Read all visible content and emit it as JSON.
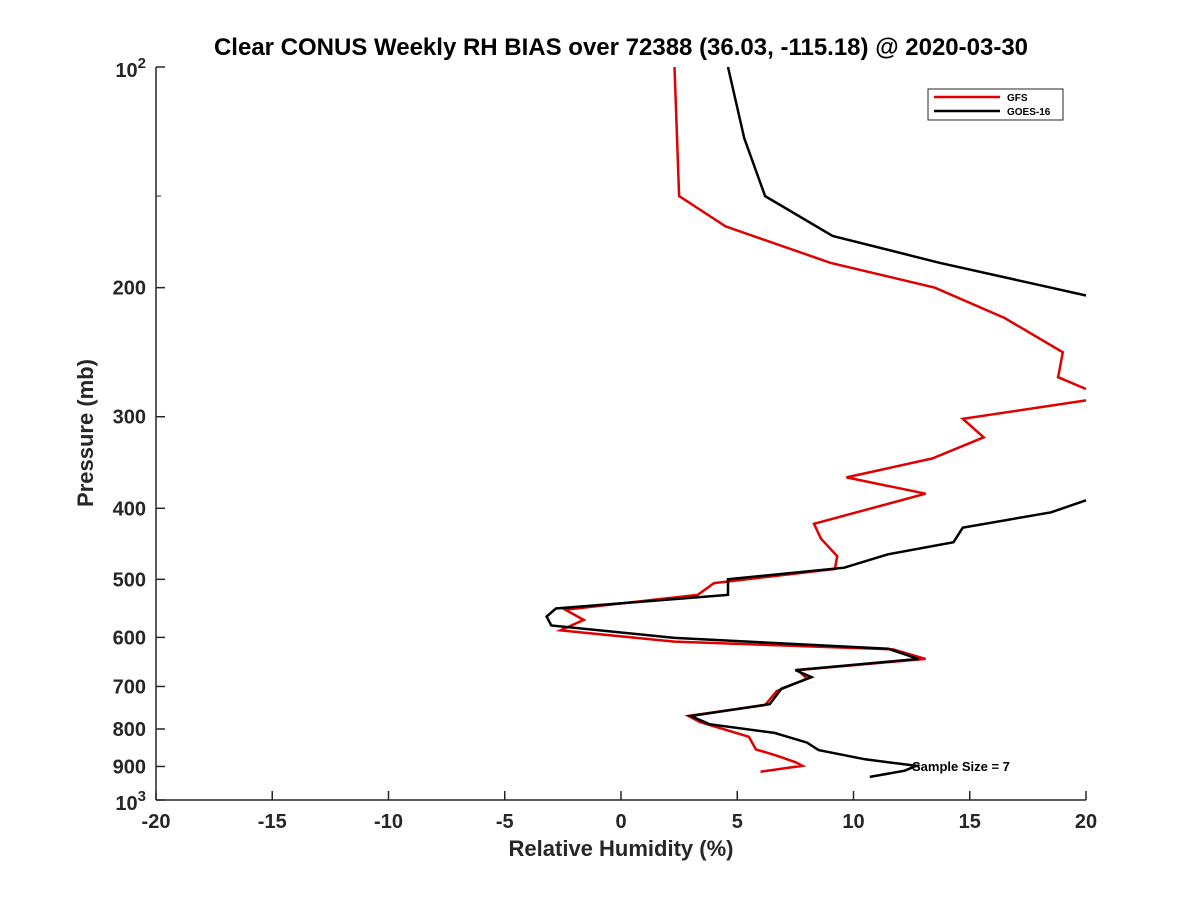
{
  "chart_data": {
    "type": "line",
    "title": "Clear CONUS Weekly RH BIAS over 72388 (36.03, -115.18) @ 2020-03-30",
    "xlabel": "Relative Humidity (%)",
    "ylabel": "Pressure (mb)",
    "xlim": [
      -20,
      20
    ],
    "ylim": [
      100,
      1000
    ],
    "y_scale": "log",
    "y_reversed": true,
    "xticks": [
      -20,
      -15,
      -10,
      -5,
      0,
      5,
      10,
      15,
      20
    ],
    "xtick_labels": [
      "-20",
      "-15",
      "-10",
      "-5",
      "0",
      "5",
      "10",
      "15",
      "20"
    ],
    "yticks": [
      200,
      300,
      400,
      500,
      600,
      700,
      800,
      900
    ],
    "ytick_labels": [
      "200",
      "300",
      "400",
      "500",
      "600",
      "700",
      "800",
      "900"
    ],
    "yticks_exp": [
      {
        "value": 100,
        "base": "10",
        "exp": "2"
      },
      {
        "value": 1000,
        "base": "10",
        "exp": "3"
      }
    ],
    "legend_position": "top-right",
    "grid": false,
    "series": [
      {
        "name": "GFS",
        "color": "#e00000",
        "points": [
          {
            "x": 2.3,
            "p": 100
          },
          {
            "x": 2.5,
            "p": 150
          },
          {
            "x": 4.5,
            "p": 165
          },
          {
            "x": 9.0,
            "p": 185
          },
          {
            "x": 13.5,
            "p": 200
          },
          {
            "x": 16.5,
            "p": 220
          },
          {
            "x": 19.0,
            "p": 245
          },
          {
            "x": 18.8,
            "p": 265
          },
          {
            "x": 20.0,
            "p": 275
          }
        ]
      },
      {
        "name": "GFS",
        "color": "#e00000",
        "points": [
          {
            "x": 20.0,
            "p": 285
          },
          {
            "x": 14.7,
            "p": 302
          },
          {
            "x": 15.6,
            "p": 320
          },
          {
            "x": 13.4,
            "p": 342
          },
          {
            "x": 9.7,
            "p": 363
          },
          {
            "x": 13.1,
            "p": 382
          },
          {
            "x": 8.3,
            "p": 420
          },
          {
            "x": 8.6,
            "p": 440
          },
          {
            "x": 9.3,
            "p": 465
          },
          {
            "x": 9.2,
            "p": 484
          },
          {
            "x": 4.0,
            "p": 506
          },
          {
            "x": 3.3,
            "p": 525
          },
          {
            "x": -2.4,
            "p": 550
          },
          {
            "x": -1.6,
            "p": 568
          },
          {
            "x": -2.6,
            "p": 587
          },
          {
            "x": 2.3,
            "p": 608
          },
          {
            "x": 11.7,
            "p": 623
          },
          {
            "x": 13.1,
            "p": 642
          },
          {
            "x": 7.6,
            "p": 665
          },
          {
            "x": 8.0,
            "p": 683
          },
          {
            "x": 6.7,
            "p": 710
          },
          {
            "x": 6.2,
            "p": 742
          },
          {
            "x": 2.9,
            "p": 768
          },
          {
            "x": 3.4,
            "p": 783
          },
          {
            "x": 5.5,
            "p": 820
          },
          {
            "x": 5.8,
            "p": 853
          },
          {
            "x": 6.7,
            "p": 870
          },
          {
            "x": 7.5,
            "p": 888
          },
          {
            "x": 7.8,
            "p": 898
          },
          {
            "x": 6.0,
            "p": 915
          }
        ]
      },
      {
        "name": "GOES-16",
        "color": "#000000",
        "points": [
          {
            "x": 4.6,
            "p": 100
          },
          {
            "x": 5.3,
            "p": 125
          },
          {
            "x": 6.2,
            "p": 150
          },
          {
            "x": 9.1,
            "p": 170
          },
          {
            "x": 13.7,
            "p": 185
          },
          {
            "x": 18.5,
            "p": 200
          },
          {
            "x": 20.0,
            "p": 205
          }
        ]
      },
      {
        "name": "GOES-16",
        "color": "#000000",
        "points": [
          {
            "x": 20.0,
            "p": 390
          },
          {
            "x": 18.5,
            "p": 405
          },
          {
            "x": 14.7,
            "p": 425
          },
          {
            "x": 14.3,
            "p": 445
          },
          {
            "x": 11.5,
            "p": 462
          },
          {
            "x": 9.6,
            "p": 482
          },
          {
            "x": 4.6,
            "p": 500
          },
          {
            "x": 4.6,
            "p": 525
          },
          {
            "x": -2.8,
            "p": 548
          },
          {
            "x": -3.2,
            "p": 562
          },
          {
            "x": -3.0,
            "p": 578
          },
          {
            "x": 2.3,
            "p": 601
          },
          {
            "x": 11.5,
            "p": 622
          },
          {
            "x": 12.8,
            "p": 642
          },
          {
            "x": 7.5,
            "p": 665
          },
          {
            "x": 8.2,
            "p": 680
          },
          {
            "x": 6.9,
            "p": 705
          },
          {
            "x": 6.4,
            "p": 740
          },
          {
            "x": 3.0,
            "p": 768
          },
          {
            "x": 3.8,
            "p": 788
          },
          {
            "x": 6.6,
            "p": 810
          },
          {
            "x": 8.0,
            "p": 835
          },
          {
            "x": 8.5,
            "p": 855
          },
          {
            "x": 10.5,
            "p": 880
          },
          {
            "x": 12.7,
            "p": 898
          },
          {
            "x": 12.2,
            "p": 912
          },
          {
            "x": 10.7,
            "p": 930
          }
        ]
      }
    ],
    "legend": [
      {
        "label": "GFS",
        "color": "#e00000"
      },
      {
        "label": "GOES-16",
        "color": "#000000"
      }
    ],
    "annotation": "Sample Size = 7"
  }
}
